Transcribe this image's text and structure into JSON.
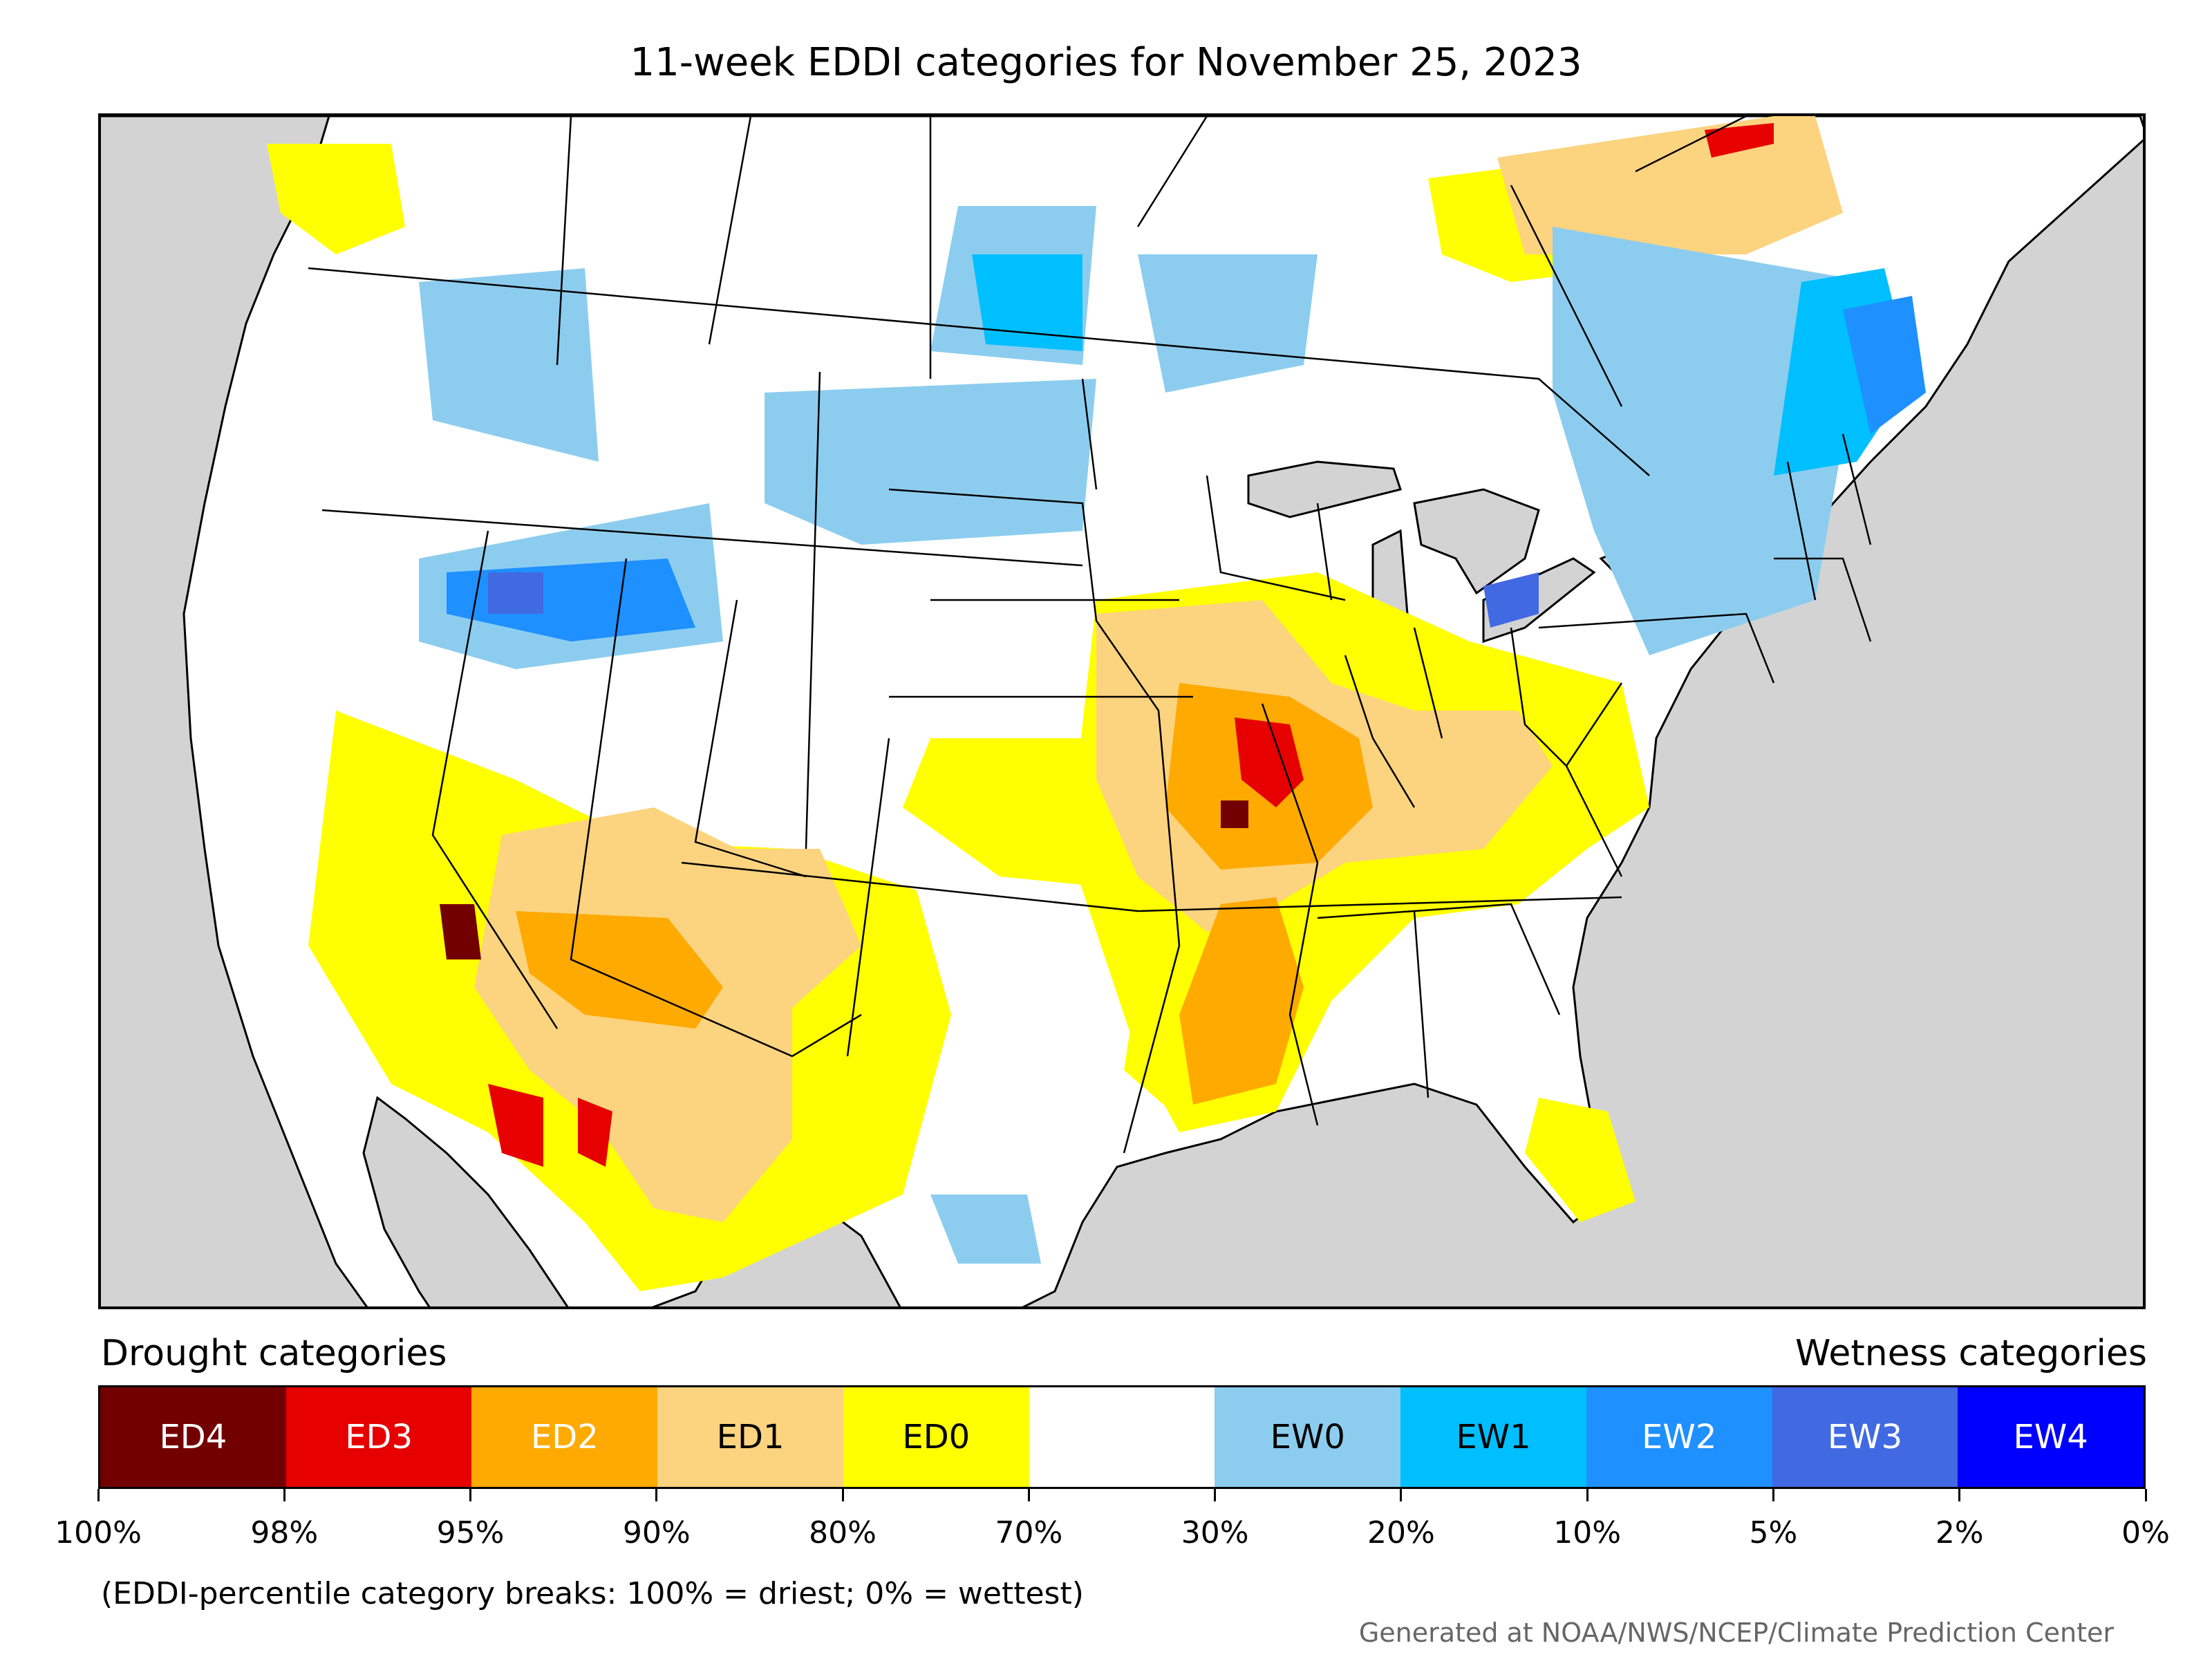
{
  "title": "11-week EDDI categories for November 25, 2023",
  "legend": {
    "drought_heading": "Drought categories",
    "wetness_heading": "Wetness categories",
    "categories": [
      {
        "label": "ED4",
        "color": "#730000",
        "text_color": "#ffffff"
      },
      {
        "label": "ED3",
        "color": "#e60000",
        "text_color": "#ffffff"
      },
      {
        "label": "ED2",
        "color": "#ffaa00",
        "text_color": "#ffffff"
      },
      {
        "label": "ED1",
        "color": "#fcd37f",
        "text_color": "#000000"
      },
      {
        "label": "ED0",
        "color": "#ffff00",
        "text_color": "#000000"
      },
      {
        "label": "",
        "color": "#ffffff",
        "text_color": "#000000"
      },
      {
        "label": "EW0",
        "color": "#8ccdef",
        "text_color": "#000000"
      },
      {
        "label": "EW1",
        "color": "#00bfff",
        "text_color": "#000000"
      },
      {
        "label": "EW2",
        "color": "#1e90ff",
        "text_color": "#ffffff"
      },
      {
        "label": "EW3",
        "color": "#4169e1",
        "text_color": "#ffffff"
      },
      {
        "label": "EW4",
        "color": "#0000ff",
        "text_color": "#ffffff"
      }
    ],
    "breaks": [
      "100%",
      "98%",
      "95%",
      "90%",
      "80%",
      "70%",
      "30%",
      "20%",
      "10%",
      "5%",
      "2%",
      "0%"
    ]
  },
  "note": "(EDDI-percentile category breaks: 100% = driest; 0% = wettest)",
  "credit": "Generated at NOAA/NWS/NCEP/Climate Prediction Center",
  "map": {
    "ocean_color": "#d3d3d3",
    "land_color": "#ffffff",
    "border_color": "#000000"
  }
}
